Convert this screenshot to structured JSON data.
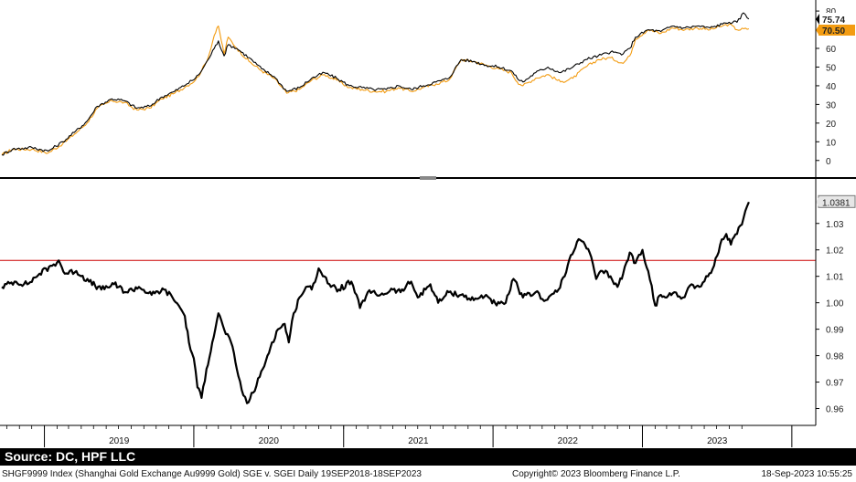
{
  "chart_data": [
    {
      "type": "line",
      "panel": "top",
      "ylim": [
        -5,
        82
      ],
      "yticks": [
        0,
        10,
        20,
        30,
        40,
        50,
        60,
        70,
        80
      ],
      "grid": false,
      "series": [
        {
          "color": "#f39c12",
          "last_value_label": "70.50",
          "points": [
            [
              "2018-09-19",
              3
            ],
            [
              "2018-10-15",
              6
            ],
            [
              "2018-12-01",
              6
            ],
            [
              "2019-01-10",
              4
            ],
            [
              "2019-02-15",
              9
            ],
            [
              "2019-03-15",
              14
            ],
            [
              "2019-04-15",
              20
            ],
            [
              "2019-05-10",
              28
            ],
            [
              "2019-06-15",
              32
            ],
            [
              "2019-07-15",
              31
            ],
            [
              "2019-08-15",
              27
            ],
            [
              "2019-09-15",
              28
            ],
            [
              "2019-10-15",
              33
            ],
            [
              "2019-11-15",
              36
            ],
            [
              "2019-12-15",
              40
            ],
            [
              "2020-01-05",
              43
            ],
            [
              "2020-01-20",
              48
            ],
            [
              "2020-02-05",
              55
            ],
            [
              "2020-02-20",
              67
            ],
            [
              "2020-03-01",
              72
            ],
            [
              "2020-03-15",
              57
            ],
            [
              "2020-03-25",
              66
            ],
            [
              "2020-04-15",
              60
            ],
            [
              "2020-05-15",
              53
            ],
            [
              "2020-06-15",
              48
            ],
            [
              "2020-07-15",
              44
            ],
            [
              "2020-08-15",
              36
            ],
            [
              "2020-09-15",
              38
            ],
            [
              "2020-10-15",
              43
            ],
            [
              "2020-11-15",
              46
            ],
            [
              "2020-12-15",
              43
            ],
            [
              "2021-01-15",
              39
            ],
            [
              "2021-02-15",
              38
            ],
            [
              "2021-03-15",
              37
            ],
            [
              "2021-04-15",
              37
            ],
            [
              "2021-05-15",
              39
            ],
            [
              "2021-06-15",
              37
            ],
            [
              "2021-07-15",
              39
            ],
            [
              "2021-08-15",
              41
            ],
            [
              "2021-09-15",
              43
            ],
            [
              "2021-10-15",
              54
            ],
            [
              "2021-11-15",
              53
            ],
            [
              "2021-12-15",
              51
            ],
            [
              "2022-01-15",
              49
            ],
            [
              "2022-02-15",
              47
            ],
            [
              "2022-03-01",
              42
            ],
            [
              "2022-03-15",
              40
            ],
            [
              "2022-04-15",
              44
            ],
            [
              "2022-05-15",
              46
            ],
            [
              "2022-06-15",
              42
            ],
            [
              "2022-07-15",
              44
            ],
            [
              "2022-08-15",
              50
            ],
            [
              "2022-09-15",
              54
            ],
            [
              "2022-10-15",
              55
            ],
            [
              "2022-11-15",
              52
            ],
            [
              "2022-12-01",
              56
            ],
            [
              "2022-12-15",
              65
            ],
            [
              "2023-01-15",
              70
            ],
            [
              "2023-02-15",
              68
            ],
            [
              "2023-03-15",
              71
            ],
            [
              "2023-04-15",
              70
            ],
            [
              "2023-05-15",
              71
            ],
            [
              "2023-06-15",
              70
            ],
            [
              "2023-07-15",
              72
            ],
            [
              "2023-08-01",
              73
            ],
            [
              "2023-08-20",
              70
            ],
            [
              "2023-09-18",
              70.5
            ]
          ]
        },
        {
          "color": "#000000",
          "last_value_label": "75.74",
          "points": [
            [
              "2018-09-19",
              3
            ],
            [
              "2018-10-15",
              6
            ],
            [
              "2018-12-01",
              7
            ],
            [
              "2019-01-10",
              5
            ],
            [
              "2019-02-15",
              10
            ],
            [
              "2019-03-15",
              15
            ],
            [
              "2019-04-15",
              21
            ],
            [
              "2019-05-10",
              29
            ],
            [
              "2019-06-15",
              33
            ],
            [
              "2019-07-15",
              32
            ],
            [
              "2019-08-15",
              28
            ],
            [
              "2019-09-15",
              29
            ],
            [
              "2019-10-15",
              34
            ],
            [
              "2019-11-15",
              37
            ],
            [
              "2019-12-15",
              41
            ],
            [
              "2020-01-05",
              44
            ],
            [
              "2020-01-20",
              48
            ],
            [
              "2020-02-05",
              54
            ],
            [
              "2020-02-20",
              60
            ],
            [
              "2020-03-01",
              64
            ],
            [
              "2020-03-15",
              56
            ],
            [
              "2020-03-25",
              62
            ],
            [
              "2020-04-15",
              60
            ],
            [
              "2020-05-15",
              55
            ],
            [
              "2020-06-15",
              49
            ],
            [
              "2020-07-15",
              45
            ],
            [
              "2020-08-15",
              37
            ],
            [
              "2020-09-15",
              39
            ],
            [
              "2020-10-15",
              44
            ],
            [
              "2020-11-15",
              47
            ],
            [
              "2020-12-15",
              44
            ],
            [
              "2021-01-15",
              40
            ],
            [
              "2021-02-15",
              39
            ],
            [
              "2021-03-15",
              38
            ],
            [
              "2021-04-15",
              38
            ],
            [
              "2021-05-15",
              40
            ],
            [
              "2021-06-15",
              38
            ],
            [
              "2021-07-15",
              40
            ],
            [
              "2021-08-15",
              42
            ],
            [
              "2021-09-15",
              44
            ],
            [
              "2021-10-15",
              54
            ],
            [
              "2021-11-15",
              53
            ],
            [
              "2021-12-15",
              51
            ],
            [
              "2022-01-15",
              50
            ],
            [
              "2022-02-15",
              48
            ],
            [
              "2022-03-01",
              44
            ],
            [
              "2022-03-15",
              42
            ],
            [
              "2022-04-15",
              47
            ],
            [
              "2022-05-15",
              50
            ],
            [
              "2022-06-15",
              47
            ],
            [
              "2022-07-15",
              50
            ],
            [
              "2022-08-15",
              54
            ],
            [
              "2022-09-15",
              56
            ],
            [
              "2022-10-15",
              58
            ],
            [
              "2022-11-15",
              57
            ],
            [
              "2022-12-01",
              60
            ],
            [
              "2022-12-15",
              66
            ],
            [
              "2023-01-15",
              70
            ],
            [
              "2023-02-15",
              69
            ],
            [
              "2023-03-15",
              72
            ],
            [
              "2023-04-15",
              71
            ],
            [
              "2023-05-15",
              72
            ],
            [
              "2023-06-15",
              71
            ],
            [
              "2023-07-15",
              73
            ],
            [
              "2023-08-01",
              74
            ],
            [
              "2023-08-20",
              74
            ],
            [
              "2023-09-05",
              79
            ],
            [
              "2023-09-18",
              75.74
            ]
          ]
        }
      ]
    },
    {
      "type": "line",
      "panel": "bottom",
      "ylim": [
        0.955,
        1.042
      ],
      "yticks": [
        "0.96",
        "0.97",
        "0.98",
        "0.99",
        "1.00",
        "1.01",
        "1.02",
        "1.03"
      ],
      "grid": false,
      "reference_line": {
        "value": 1.016,
        "color": "#cc0000"
      },
      "series": [
        {
          "color": "#000000",
          "last_value_label": "1.0381",
          "points": [
            [
              "2018-09-19",
              1.006
            ],
            [
              "2018-10-20",
              1.008
            ],
            [
              "2018-11-20",
              1.007
            ],
            [
              "2018-12-20",
              1.011
            ],
            [
              "2019-01-20",
              1.014
            ],
            [
              "2019-02-05",
              1.016
            ],
            [
              "2019-02-20",
              1.011
            ],
            [
              "2019-03-20",
              1.012
            ],
            [
              "2019-04-20",
              1.008
            ],
            [
              "2019-05-20",
              1.005
            ],
            [
              "2019-06-20",
              1.007
            ],
            [
              "2019-07-20",
              1.004
            ],
            [
              "2019-08-20",
              1.006
            ],
            [
              "2019-09-20",
              1.003
            ],
            [
              "2019-10-20",
              1.005
            ],
            [
              "2019-11-10",
              1.002
            ],
            [
              "2019-11-25",
              0.999
            ],
            [
              "2019-12-10",
              0.995
            ],
            [
              "2019-12-20",
              0.985
            ],
            [
              "2020-01-01",
              0.979
            ],
            [
              "2020-01-10",
              0.968
            ],
            [
              "2020-01-20",
              0.964
            ],
            [
              "2020-02-01",
              0.975
            ],
            [
              "2020-02-15",
              0.985
            ],
            [
              "2020-03-01",
              0.996
            ],
            [
              "2020-03-15",
              0.99
            ],
            [
              "2020-04-01",
              0.985
            ],
            [
              "2020-04-15",
              0.975
            ],
            [
              "2020-05-01",
              0.965
            ],
            [
              "2020-05-10",
              0.962
            ],
            [
              "2020-05-25",
              0.966
            ],
            [
              "2020-06-10",
              0.972
            ],
            [
              "2020-06-25",
              0.978
            ],
            [
              "2020-07-10",
              0.985
            ],
            [
              "2020-07-25",
              0.99
            ],
            [
              "2020-08-10",
              0.992
            ],
            [
              "2020-08-20",
              0.985
            ],
            [
              "2020-09-01",
              0.996
            ],
            [
              "2020-09-15",
              1.002
            ],
            [
              "2020-10-01",
              1.006
            ],
            [
              "2020-10-15",
              1.005
            ],
            [
              "2020-11-01",
              1.013
            ],
            [
              "2020-11-15",
              1.01
            ],
            [
              "2020-12-01",
              1.006
            ],
            [
              "2020-12-20",
              1.005
            ],
            [
              "2021-01-20",
              1.008
            ],
            [
              "2021-02-10",
              0.998
            ],
            [
              "2021-03-01",
              1.004
            ],
            [
              "2021-04-01",
              1.003
            ],
            [
              "2021-05-01",
              1.005
            ],
            [
              "2021-05-20",
              1.004
            ],
            [
              "2021-06-15",
              1.008
            ],
            [
              "2021-07-01",
              1.002
            ],
            [
              "2021-08-01",
              1.007
            ],
            [
              "2021-08-20",
              1.0
            ],
            [
              "2021-09-15",
              1.004
            ],
            [
              "2021-10-15",
              1.003
            ],
            [
              "2021-11-15",
              1.001
            ],
            [
              "2021-12-15",
              1.003
            ],
            [
              "2022-01-10",
              0.999
            ],
            [
              "2022-02-01",
              1.0
            ],
            [
              "2022-02-20",
              1.009
            ],
            [
              "2022-03-15",
              1.002
            ],
            [
              "2022-04-15",
              1.004
            ],
            [
              "2022-05-10",
              1.001
            ],
            [
              "2022-06-10",
              1.005
            ],
            [
              "2022-06-25",
              1.01
            ],
            [
              "2022-07-10",
              1.018
            ],
            [
              "2022-07-25",
              1.023
            ],
            [
              "2022-08-10",
              1.023
            ],
            [
              "2022-08-25",
              1.019
            ],
            [
              "2022-09-10",
              1.009
            ],
            [
              "2022-09-25",
              1.012
            ],
            [
              "2022-10-15",
              1.01
            ],
            [
              "2022-11-01",
              1.006
            ],
            [
              "2022-11-15",
              1.011
            ],
            [
              "2022-12-01",
              1.019
            ],
            [
              "2022-12-15",
              1.015
            ],
            [
              "2023-01-01",
              1.02
            ],
            [
              "2023-01-15",
              1.012
            ],
            [
              "2023-02-01",
              0.999
            ],
            [
              "2023-02-15",
              1.003
            ],
            [
              "2023-03-01",
              1.002
            ],
            [
              "2023-03-20",
              1.004
            ],
            [
              "2023-04-10",
              1.002
            ],
            [
              "2023-05-01",
              1.007
            ],
            [
              "2023-05-20",
              1.006
            ],
            [
              "2023-06-10",
              1.01
            ],
            [
              "2023-06-25",
              1.014
            ],
            [
              "2023-07-10",
              1.022
            ],
            [
              "2023-07-25",
              1.026
            ],
            [
              "2023-08-05",
              1.022
            ],
            [
              "2023-08-20",
              1.026
            ],
            [
              "2023-09-05",
              1.032
            ],
            [
              "2023-09-18",
              1.0381
            ]
          ]
        }
      ]
    }
  ],
  "x_axis": {
    "years": [
      "2019",
      "2020",
      "2021",
      "2022",
      "2023"
    ],
    "start": "2018-09-19",
    "end": "2023-09-18"
  },
  "footer": {
    "source": "Source: DC, HPF LLC",
    "description": "SHGF9999 Index (Shanghai Gold Exchange Au9999 Gold) SGE v. SGEI  Daily 19SEP2018-18SEP2023",
    "copyright": "Copyright© 2023 Bloomberg Finance L.P.",
    "timestamp": "18-Sep-2023 10:55:25"
  },
  "colors": {
    "orange_series": "#f39c12",
    "black_series": "#000000",
    "reference_line": "#cc0000",
    "footer_bar": "#000000"
  }
}
